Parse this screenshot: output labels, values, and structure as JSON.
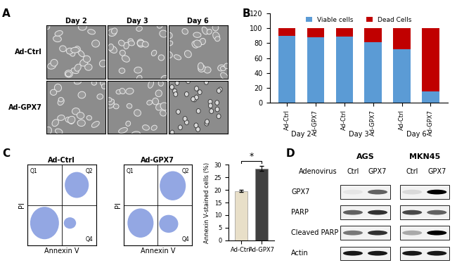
{
  "panel_labels": [
    "A",
    "B",
    "C",
    "D"
  ],
  "micrographs": {
    "columns": [
      "Day 2",
      "Day 3",
      "Day 6"
    ],
    "rows": [
      "Ad-Ctrl",
      "Ad-GPX7"
    ]
  },
  "chart_data": [
    {
      "type": "bar",
      "stacked": true,
      "categories": [
        "Ad-Ctrl",
        "Ad-GPX7",
        "Ad-Ctrl",
        "Ad-GPX7",
        "Ad-Ctrl",
        "Ad-GPX7"
      ],
      "groups": [
        "Day 2",
        "Day 3",
        "Day 6"
      ],
      "series": [
        {
          "name": "Viable cells",
          "color": "#5b9bd5",
          "values": [
            90,
            88,
            89,
            81,
            72,
            15
          ]
        },
        {
          "name": "Dead Cells",
          "color": "#c00000",
          "values": [
            10,
            12,
            11,
            19,
            28,
            85
          ]
        }
      ],
      "ylim": [
        0,
        120
      ],
      "yticks": [
        0,
        20,
        40,
        60,
        80,
        100,
        120
      ],
      "legend": "upper center"
    },
    {
      "type": "bar",
      "categories": [
        "Ad-Ctrl",
        "Ad-GPX7"
      ],
      "values": [
        19.5,
        28.5
      ],
      "errors": [
        0.4,
        1.0
      ],
      "colors": [
        "#e8dfc8",
        "#404040"
      ],
      "y_label": "Annexin V-stained cells (%)",
      "ylim": [
        0,
        30
      ],
      "yticks": [
        0,
        5,
        10,
        15,
        20,
        25,
        30
      ],
      "significance": "*"
    }
  ],
  "flow_plots": {
    "titles": [
      "Ad-Ctrl",
      "Ad-GPX7"
    ],
    "x_label": "Annexin V",
    "y_label": "PI",
    "quadrants": [
      "Q1",
      "Q2",
      "Q4"
    ]
  },
  "blots": {
    "header_label": "Adenovirus",
    "lanes": [
      "Ctrl",
      "GPX7"
    ],
    "rows": [
      "GPX7",
      "PARP",
      "Cleaved PARP",
      "Actin"
    ],
    "cell_lines": [
      {
        "name": "AGS",
        "band_intensity": [
          [
            0.05,
            0.6
          ],
          [
            0.6,
            0.8
          ],
          [
            0.5,
            0.8
          ],
          [
            0.9,
            0.9
          ]
        ]
      },
      {
        "name": "MKN45",
        "band_intensity": [
          [
            0.1,
            1.0
          ],
          [
            0.7,
            0.6
          ],
          [
            0.3,
            1.0
          ],
          [
            0.9,
            0.9
          ]
        ]
      }
    ]
  }
}
